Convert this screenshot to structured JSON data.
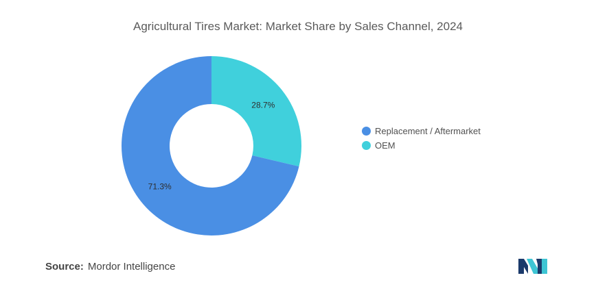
{
  "title": "Agricultural Tires Market: Market Share by Sales Channel, 2024",
  "chart_data": {
    "type": "pie",
    "donut": true,
    "title": "Agricultural Tires Market: Market Share by Sales Channel, 2024",
    "legend_position": "right",
    "slices": [
      {
        "label": "OEM",
        "value": 28.7,
        "display": "28.7%",
        "color": "#40d0dc"
      },
      {
        "label": "Replacement / Aftermarket",
        "value": 71.3,
        "display": "71.3%",
        "color": "#4a8fe4"
      }
    ]
  },
  "legend": [
    {
      "label": "Replacement / Aftermarket",
      "color": "#4a8fe4"
    },
    {
      "label": "OEM",
      "color": "#40d0dc"
    }
  ],
  "source": {
    "label": "Source:",
    "text": "Mordor Intelligence"
  },
  "logo": {
    "icon": "mordor-intelligence-logo",
    "colors": [
      "#1b3a6b",
      "#3ec5d4"
    ]
  }
}
